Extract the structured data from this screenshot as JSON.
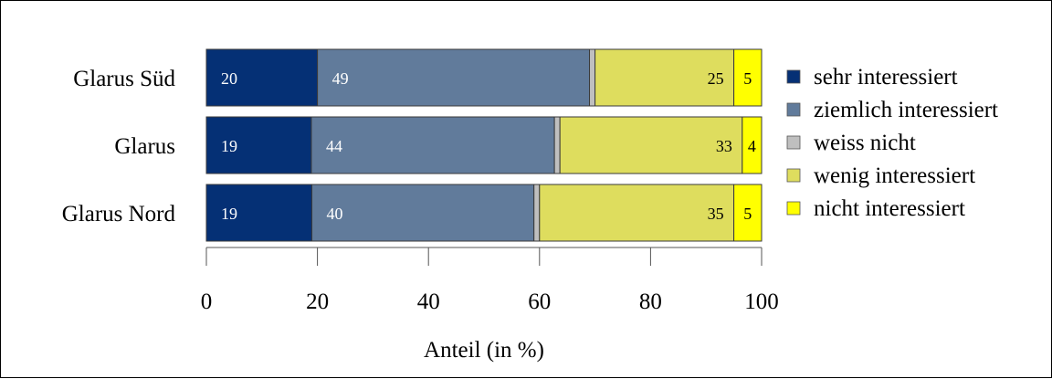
{
  "chart_data": {
    "type": "bar",
    "orientation": "horizontal",
    "stacked": true,
    "categories": [
      "Glarus Süd",
      "Glarus",
      "Glarus Nord"
    ],
    "series": [
      {
        "name": "sehr interessiert",
        "color": "#053075",
        "values": [
          20,
          19,
          19
        ],
        "labels": [
          "20",
          "19",
          "19"
        ]
      },
      {
        "name": "ziemlich interessiert",
        "color": "#617b9b",
        "values": [
          49,
          44,
          40
        ],
        "labels": [
          "49",
          "44",
          "40"
        ]
      },
      {
        "name": "weiss nicht",
        "color": "#bfbfbf",
        "values": [
          1,
          1,
          1
        ],
        "labels": [
          "",
          "",
          ""
        ]
      },
      {
        "name": "wenig interessiert",
        "color": "#dedd5e",
        "values": [
          25,
          33,
          35
        ],
        "labels": [
          "25",
          "33",
          "35"
        ]
      },
      {
        "name": "nicht interessiert",
        "color": "#ffff00",
        "values": [
          5,
          3.5,
          5
        ],
        "labels": [
          "5",
          "4",
          "5"
        ]
      }
    ],
    "xlabel": "Anteil (in %)",
    "xlim": [
      0,
      100
    ],
    "xticks": [
      0,
      20,
      40,
      60,
      80,
      100
    ],
    "legend_position": "right",
    "grid": false
  }
}
